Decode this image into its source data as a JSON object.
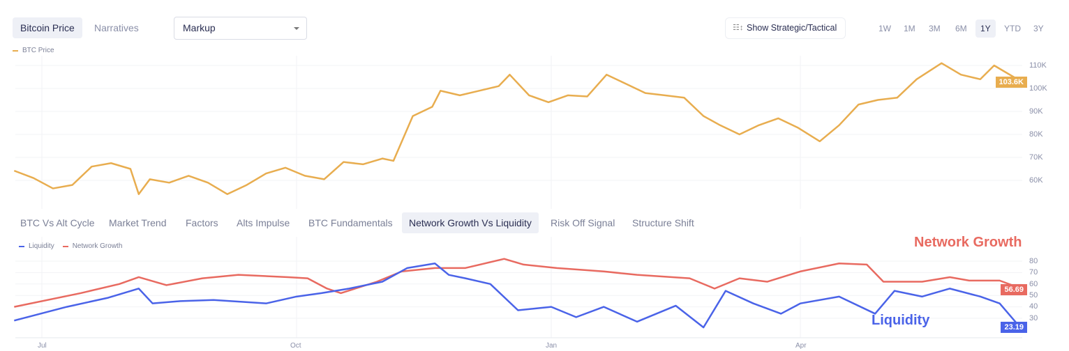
{
  "top_tabs": [
    {
      "label": "Bitcoin Price",
      "active": true
    },
    {
      "label": "Narratives",
      "active": false
    }
  ],
  "dropdown": {
    "value": "Markup"
  },
  "toggle": {
    "label": "Show Strategic/Tactical",
    "icon": "sliders-icon"
  },
  "ranges": [
    {
      "label": "1W"
    },
    {
      "label": "1M"
    },
    {
      "label": "3M"
    },
    {
      "label": "6M"
    },
    {
      "label": "1Y",
      "active": true
    },
    {
      "label": "YTD"
    },
    {
      "label": "3Y"
    }
  ],
  "chart_tabs": [
    {
      "label": "BTC Vs Alt Cycle"
    },
    {
      "label": "Market Trend"
    },
    {
      "label": "Factors"
    },
    {
      "label": "Alts Impulse"
    },
    {
      "label": "BTC Fundamentals"
    },
    {
      "label": "Network Growth Vs Liquidity",
      "active": true
    },
    {
      "label": "Risk Off Signal"
    },
    {
      "label": "Structure Shift"
    }
  ],
  "chart_data": [
    {
      "type": "line",
      "legend": [
        {
          "name": "BTC Price",
          "color": "#e8ad4f"
        }
      ],
      "yticks": [
        "60K",
        "70K",
        "80K",
        "90K",
        "100K",
        "110K"
      ],
      "ylim": [
        50000,
        113000
      ],
      "last_value_label": "103.6K",
      "series": [
        {
          "name": "BTC Price",
          "color": "#e8ad4f",
          "points": [
            [
              "2024-06-21",
              64200
            ],
            [
              "2024-06-28",
              61000
            ],
            [
              "2024-07-05",
              56500
            ],
            [
              "2024-07-12",
              58000
            ],
            [
              "2024-07-19",
              66000
            ],
            [
              "2024-07-26",
              67500
            ],
            [
              "2024-08-02",
              65000
            ],
            [
              "2024-08-05",
              54000
            ],
            [
              "2024-08-09",
              60500
            ],
            [
              "2024-08-16",
              59000
            ],
            [
              "2024-08-23",
              62000
            ],
            [
              "2024-08-30",
              59000
            ],
            [
              "2024-09-06",
              54000
            ],
            [
              "2024-09-13",
              58000
            ],
            [
              "2024-09-20",
              63000
            ],
            [
              "2024-09-27",
              65500
            ],
            [
              "2024-10-04",
              62000
            ],
            [
              "2024-10-11",
              60500
            ],
            [
              "2024-10-18",
              68000
            ],
            [
              "2024-10-25",
              67000
            ],
            [
              "2024-11-01",
              69500
            ],
            [
              "2024-11-05",
              68500
            ],
            [
              "2024-11-12",
              88000
            ],
            [
              "2024-11-19",
              92000
            ],
            [
              "2024-11-22",
              99000
            ],
            [
              "2024-11-29",
              97000
            ],
            [
              "2024-12-06",
              99000
            ],
            [
              "2024-12-13",
              101000
            ],
            [
              "2024-12-17",
              106000
            ],
            [
              "2024-12-24",
              97000
            ],
            [
              "2024-12-31",
              94000
            ],
            [
              "2025-01-07",
              97000
            ],
            [
              "2025-01-14",
              96500
            ],
            [
              "2025-01-21",
              106000
            ],
            [
              "2025-01-28",
              102000
            ],
            [
              "2025-02-04",
              98000
            ],
            [
              "2025-02-11",
              97000
            ],
            [
              "2025-02-18",
              96000
            ],
            [
              "2025-02-25",
              88000
            ],
            [
              "2025-03-03",
              84000
            ],
            [
              "2025-03-10",
              80000
            ],
            [
              "2025-03-17",
              84000
            ],
            [
              "2025-03-24",
              87000
            ],
            [
              "2025-03-31",
              83000
            ],
            [
              "2025-04-08",
              77000
            ],
            [
              "2025-04-15",
              84000
            ],
            [
              "2025-04-22",
              93000
            ],
            [
              "2025-04-29",
              95000
            ],
            [
              "2025-05-06",
              96000
            ],
            [
              "2025-05-13",
              104000
            ],
            [
              "2025-05-22",
              111000
            ],
            [
              "2025-05-29",
              106000
            ],
            [
              "2025-06-05",
              104000
            ],
            [
              "2025-06-10",
              110000
            ],
            [
              "2025-06-19",
              103600
            ]
          ]
        }
      ]
    },
    {
      "type": "line",
      "legend": [
        {
          "name": "Liquidity",
          "color": "#4a63e8"
        },
        {
          "name": "Network Growth",
          "color": "#e86a60"
        }
      ],
      "annotations": [
        {
          "text": "Network Growth",
          "color": "#e86a60"
        },
        {
          "text": "Liquidity",
          "color": "#4a63e8"
        }
      ],
      "yticks": [
        "30",
        "40",
        "50",
        "60",
        "70",
        "80"
      ],
      "ylim": [
        20,
        86
      ],
      "xticks": [
        "Jul",
        "Oct",
        "Jan",
        "Apr"
      ],
      "series": [
        {
          "name": "Network Growth",
          "color": "#e86a60",
          "last_value_label": "56.69",
          "points": [
            [
              "2024-06-21",
              40
            ],
            [
              "2024-07-15",
              52
            ],
            [
              "2024-07-29",
              60
            ],
            [
              "2024-08-05",
              66
            ],
            [
              "2024-08-15",
              59
            ],
            [
              "2024-08-28",
              65
            ],
            [
              "2024-09-10",
              68
            ],
            [
              "2024-09-28",
              66
            ],
            [
              "2024-10-05",
              65
            ],
            [
              "2024-10-12",
              56
            ],
            [
              "2024-10-17",
              52
            ],
            [
              "2024-10-30",
              62
            ],
            [
              "2024-11-08",
              71
            ],
            [
              "2024-11-20",
              74
            ],
            [
              "2024-12-01",
              74
            ],
            [
              "2024-12-15",
              82
            ],
            [
              "2024-12-22",
              77
            ],
            [
              "2025-01-03",
              74
            ],
            [
              "2025-01-20",
              71
            ],
            [
              "2025-02-01",
              68
            ],
            [
              "2025-02-20",
              65
            ],
            [
              "2025-03-01",
              56
            ],
            [
              "2025-03-10",
              65
            ],
            [
              "2025-03-20",
              62
            ],
            [
              "2025-04-01",
              71
            ],
            [
              "2025-04-15",
              78
            ],
            [
              "2025-04-25",
              77
            ],
            [
              "2025-05-01",
              62
            ],
            [
              "2025-05-15",
              62
            ],
            [
              "2025-05-25",
              66
            ],
            [
              "2025-06-01",
              63
            ],
            [
              "2025-06-12",
              63
            ],
            [
              "2025-06-19",
              56.69
            ]
          ]
        },
        {
          "name": "Liquidity",
          "color": "#4a63e8",
          "last_value_label": "23.19",
          "points": [
            [
              "2024-06-21",
              28
            ],
            [
              "2024-07-10",
              40
            ],
            [
              "2024-07-25",
              48
            ],
            [
              "2024-08-05",
              56
            ],
            [
              "2024-08-10",
              43
            ],
            [
              "2024-08-20",
              45
            ],
            [
              "2024-09-01",
              46
            ],
            [
              "2024-09-20",
              43
            ],
            [
              "2024-10-01",
              49
            ],
            [
              "2024-10-10",
              52
            ],
            [
              "2024-10-20",
              56
            ],
            [
              "2024-11-01",
              62
            ],
            [
              "2024-11-10",
              74
            ],
            [
              "2024-11-20",
              78
            ],
            [
              "2024-11-25",
              68
            ],
            [
              "2024-12-01",
              65
            ],
            [
              "2024-12-10",
              60
            ],
            [
              "2024-12-20",
              37
            ],
            [
              "2025-01-01",
              40
            ],
            [
              "2025-01-10",
              31
            ],
            [
              "2025-01-20",
              40
            ],
            [
              "2025-02-01",
              27
            ],
            [
              "2025-02-15",
              41
            ],
            [
              "2025-02-25",
              22
            ],
            [
              "2025-03-05",
              54
            ],
            [
              "2025-03-15",
              43
            ],
            [
              "2025-03-25",
              34
            ],
            [
              "2025-04-01",
              43
            ],
            [
              "2025-04-15",
              49
            ],
            [
              "2025-04-28",
              34
            ],
            [
              "2025-05-05",
              54
            ],
            [
              "2025-05-15",
              49
            ],
            [
              "2025-05-25",
              56
            ],
            [
              "2025-06-05",
              49
            ],
            [
              "2025-06-12",
              43
            ],
            [
              "2025-06-19",
              23.19
            ]
          ]
        }
      ]
    }
  ]
}
